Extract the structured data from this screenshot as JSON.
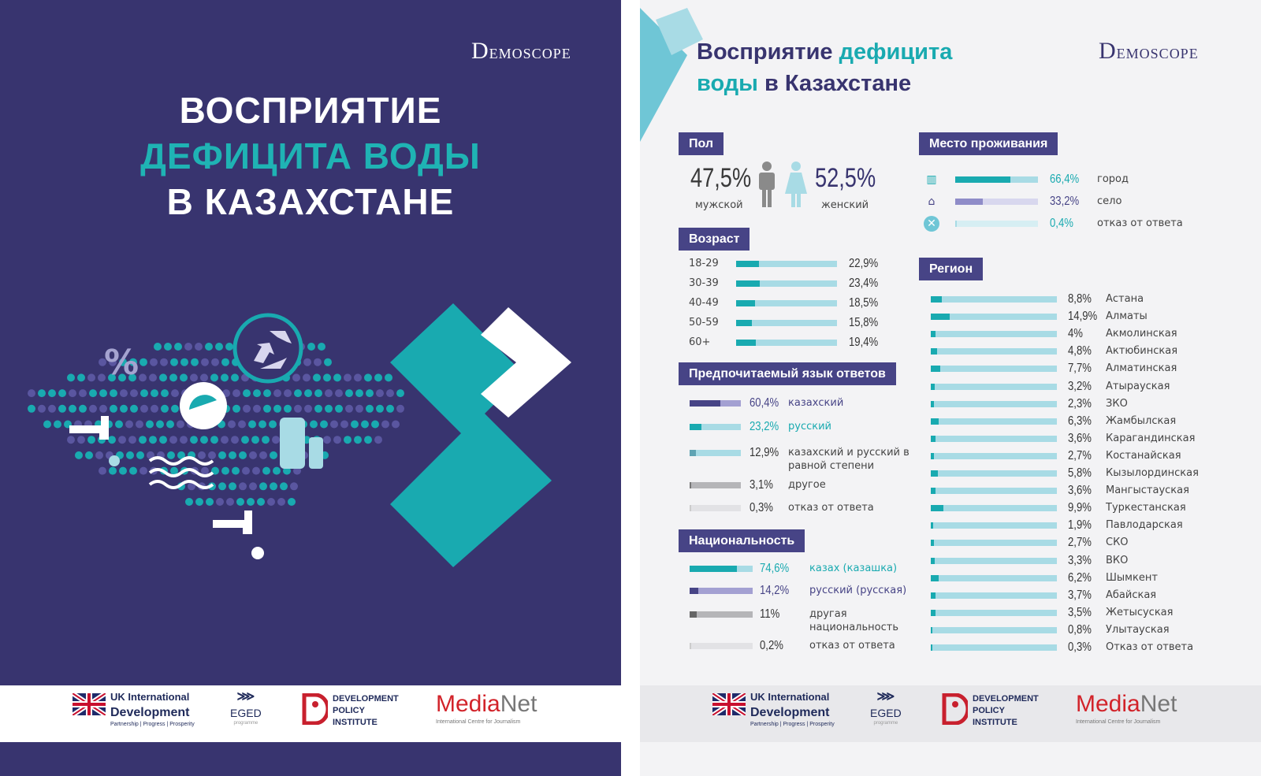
{
  "cover": {
    "title_line1": "ВОСПРИЯТИЕ",
    "title_line2": "ДЕФИЦИТА ВОДЫ",
    "title_line3": "В КАЗАХСТАНЕ",
    "percent_symbol": "%"
  },
  "brand": {
    "logo_letter": "D",
    "logo_text": "EMOSCOPE"
  },
  "page": {
    "title_part1": "Восприятие ",
    "title_part2": "дефицита",
    "title_part3": "воды",
    "title_part4": " в Казахстане"
  },
  "colors": {
    "navy": "#38346f",
    "teal": "#19aab0",
    "light_teal": "#a8dbe5",
    "purple": "#474486",
    "header_bg": "#474486"
  },
  "gender": {
    "header": "Пол",
    "male_value": "47,5%",
    "male_label": "мужской",
    "female_value": "52,5%",
    "female_label": "женский"
  },
  "footer": {
    "uk_line1": "UK International",
    "uk_line2": "Development",
    "uk_tagline": "Partnership  |  Progress  |  Prosperity",
    "eged": "EGED",
    "eged_sub": "programme",
    "dpi_line1": "DEVELOPMENT",
    "dpi_line2": "POLICY",
    "dpi_line3": "INSTITUTE",
    "medianet_a": "Media",
    "medianet_b": "Net",
    "medianet_sub": "International Centre for Journalism"
  },
  "chart_data": [
    {
      "type": "bar",
      "title": "Возраст",
      "categories": [
        "18-29",
        "30-39",
        "40-49",
        "50-59",
        "60+"
      ],
      "values": [
        22.9,
        23.4,
        18.5,
        15.8,
        19.4
      ],
      "labels": [
        "22,9%",
        "23,4%",
        "18,5%",
        "15,8%",
        "19,4%"
      ]
    },
    {
      "type": "bar",
      "title": "Предпочитаемый язык ответов",
      "categories": [
        "казахский",
        "русский",
        "казахский и русский в равной степени",
        "другое",
        "отказ от ответа"
      ],
      "values": [
        60.4,
        23.2,
        12.9,
        3.1,
        0.3
      ],
      "labels": [
        "60,4%",
        "23,2%",
        "12,9%",
        "3,1%",
        "0,3%"
      ],
      "colors": [
        [
          "#474486",
          "#a3a0d2",
          "#474486"
        ],
        [
          "#19aab0",
          "#a8dbe5",
          "#19aab0"
        ],
        [
          "#5fa3b3",
          "#a8dbe5",
          "#333333"
        ],
        [
          "#777777",
          "#b5b5b8",
          "#333333"
        ],
        [
          "#cccccc",
          "#e2e2e5",
          "#333333"
        ]
      ]
    },
    {
      "type": "bar",
      "title": "Национальность",
      "categories": [
        "казах (казашка)",
        "русский (русская)",
        "другая национальность",
        "отказ от ответа"
      ],
      "values": [
        74.6,
        14.2,
        11,
        0.2
      ],
      "labels": [
        "74,6%",
        "14,2%",
        "11%",
        "0,2%"
      ],
      "colors": [
        [
          "#19aab0",
          "#a8dbe5",
          "#19aab0"
        ],
        [
          "#474486",
          "#a3a0d2",
          "#474486"
        ],
        [
          "#666666",
          "#b5b5b8",
          "#333333"
        ],
        [
          "#cccccc",
          "#e2e2e5",
          "#333333"
        ]
      ]
    },
    {
      "type": "bar",
      "title": "Место проживания",
      "categories": [
        "город",
        "село",
        "отказ от ответа"
      ],
      "values": [
        66.4,
        33.2,
        0.4
      ],
      "labels": [
        "66,4%",
        "33,2%",
        "0,4%"
      ],
      "icons": [
        "city-icon",
        "village-icon",
        "cross-circle-icon"
      ],
      "colors": [
        [
          "#19aab0",
          "#a8dbe5",
          "#19aab0"
        ],
        [
          "#8f8cc8",
          "#d8d7ee",
          "#474486"
        ],
        [
          "#a8dbe5",
          "#d6eef3",
          "#19aab0"
        ]
      ]
    },
    {
      "type": "bar",
      "title": "Регион",
      "categories": [
        "Астана",
        "Алматы",
        "Акмолинская",
        "Актюбинская",
        "Алматинская",
        "Атырауская",
        "ЗКО",
        "Жамбылская",
        "Карагандинская",
        "Костанайская",
        "Кызылординская",
        "Мангыстауская",
        "Туркестанская",
        "Павлодарская",
        "СКО",
        "ВКО",
        "Шымкент",
        "Абайская",
        "Жетысуская",
        "Улытауская",
        "Отказ от ответа"
      ],
      "values": [
        8.8,
        14.9,
        4,
        4.8,
        7.7,
        3.2,
        2.3,
        6.3,
        3.6,
        2.7,
        5.8,
        3.6,
        9.9,
        1.9,
        2.7,
        3.3,
        6.2,
        3.7,
        3.5,
        0.8,
        0.3
      ],
      "labels": [
        "8,8%",
        "14,9%",
        "4%",
        "4,8%",
        "7,7%",
        "3,2%",
        "2,3%",
        "6,3%",
        "3,6%",
        "2,7%",
        "5,8%",
        "3,6%",
        "9,9%",
        "1,9%",
        "2,7%",
        "3,3%",
        "6,2%",
        "3,7%",
        "3,5%",
        "0,8%",
        "0,3%"
      ]
    }
  ]
}
